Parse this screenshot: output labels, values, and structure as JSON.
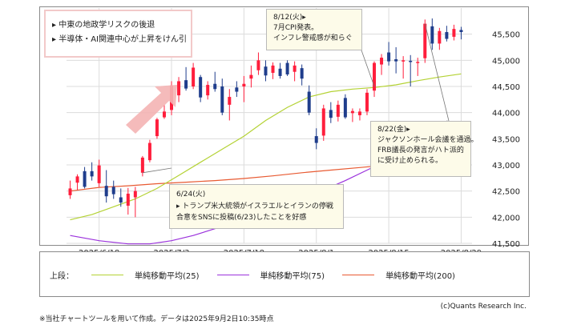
{
  "chart_data": {
    "type": "candlestick",
    "y_ticks": [
      "45,500",
      "45,000",
      "44,500",
      "44,000",
      "43,500",
      "43,000",
      "42,500",
      "42,000",
      "41,500"
    ],
    "y_tick_values": [
      45500,
      45000,
      44500,
      44000,
      43500,
      43000,
      42500,
      42000,
      41500
    ],
    "ylim": [
      41500,
      46000
    ],
    "x_ticks": [
      "2025/6/18",
      "2025/7/3",
      "2025/7/18",
      "2025/8/1",
      "2025/8/15",
      "2025/8/29"
    ],
    "x_tick_index": [
      4,
      14,
      24,
      34,
      44,
      54
    ],
    "n_slots": 56,
    "candles": [
      {
        "i": 0,
        "o": 42420,
        "h": 42700,
        "l": 42350,
        "c": 42550
      },
      {
        "i": 1,
        "o": 42660,
        "h": 42820,
        "l": 42520,
        "c": 42780
      },
      {
        "i": 2,
        "o": 42880,
        "h": 42960,
        "l": 42550,
        "c": 42580
      },
      {
        "i": 3,
        "o": 42880,
        "h": 43050,
        "l": 42700,
        "c": 42780
      },
      {
        "i": 4,
        "o": 42650,
        "h": 43100,
        "l": 42580,
        "c": 42990
      },
      {
        "i": 5,
        "o": 42600,
        "h": 42900,
        "l": 42280,
        "c": 42400
      },
      {
        "i": 6,
        "o": 42580,
        "h": 42700,
        "l": 42350,
        "c": 42440
      },
      {
        "i": 7,
        "o": 42380,
        "h": 42550,
        "l": 42200,
        "c": 42280
      },
      {
        "i": 8,
        "o": 42220,
        "h": 42560,
        "l": 42050,
        "c": 42450
      },
      {
        "i": 9,
        "o": 42380,
        "h": 42580,
        "l": 42000,
        "c": 42500
      },
      {
        "i": 10,
        "o": 42850,
        "h": 43170,
        "l": 42780,
        "c": 43140
      },
      {
        "i": 11,
        "o": 43090,
        "h": 43480,
        "l": 43050,
        "c": 43420
      },
      {
        "i": 12,
        "o": 43550,
        "h": 43900,
        "l": 43500,
        "c": 43870
      },
      {
        "i": 13,
        "o": 43910,
        "h": 44150,
        "l": 43880,
        "c": 44020
      },
      {
        "i": 14,
        "o": 44050,
        "h": 44600,
        "l": 43950,
        "c": 44520
      },
      {
        "i": 15,
        "o": 44330,
        "h": 44680,
        "l": 44200,
        "c": 44600
      },
      {
        "i": 16,
        "o": 44620,
        "h": 44870,
        "l": 44420,
        "c": 44460
      },
      {
        "i": 17,
        "o": 44500,
        "h": 44950,
        "l": 44450,
        "c": 44860
      },
      {
        "i": 18,
        "o": 44680,
        "h": 44720,
        "l": 44200,
        "c": 44290
      },
      {
        "i": 19,
        "o": 44330,
        "h": 44600,
        "l": 44250,
        "c": 44530
      },
      {
        "i": 20,
        "o": 44550,
        "h": 44780,
        "l": 44400,
        "c": 44450
      },
      {
        "i": 21,
        "o": 44500,
        "h": 44650,
        "l": 43950,
        "c": 44000
      },
      {
        "i": 22,
        "o": 44150,
        "h": 44450,
        "l": 43850,
        "c": 44300
      },
      {
        "i": 23,
        "o": 44480,
        "h": 44600,
        "l": 44300,
        "c": 44400
      },
      {
        "i": 24,
        "o": 44500,
        "h": 44700,
        "l": 44200,
        "c": 44550
      },
      {
        "i": 25,
        "o": 44650,
        "h": 44900,
        "l": 44480,
        "c": 44720
      },
      {
        "i": 26,
        "o": 44810,
        "h": 45150,
        "l": 44720,
        "c": 45000
      },
      {
        "i": 27,
        "o": 44880,
        "h": 45000,
        "l": 44600,
        "c": 44710
      },
      {
        "i": 28,
        "o": 44760,
        "h": 44960,
        "l": 44640,
        "c": 44900
      },
      {
        "i": 29,
        "o": 44840,
        "h": 44950,
        "l": 44650,
        "c": 44700
      },
      {
        "i": 30,
        "o": 44950,
        "h": 45000,
        "l": 44700,
        "c": 44730
      },
      {
        "i": 31,
        "o": 44780,
        "h": 44980,
        "l": 44600,
        "c": 44900
      },
      {
        "i": 32,
        "o": 44850,
        "h": 44920,
        "l": 44520,
        "c": 44650
      },
      {
        "i": 33,
        "o": 44400,
        "h": 44520,
        "l": 43950,
        "c": 44000
      },
      {
        "i": 34,
        "o": 43550,
        "h": 43700,
        "l": 43300,
        "c": 43420
      },
      {
        "i": 35,
        "o": 43560,
        "h": 44150,
        "l": 43460,
        "c": 44080
      },
      {
        "i": 36,
        "o": 44050,
        "h": 44200,
        "l": 43800,
        "c": 43900
      },
      {
        "i": 37,
        "o": 43920,
        "h": 44230,
        "l": 43830,
        "c": 44150
      },
      {
        "i": 38,
        "o": 44280,
        "h": 44350,
        "l": 43880,
        "c": 43910
      },
      {
        "i": 39,
        "o": 43990,
        "h": 44080,
        "l": 43820,
        "c": 44030
      },
      {
        "i": 40,
        "o": 43950,
        "h": 44080,
        "l": 43850,
        "c": 44020
      },
      {
        "i": 41,
        "o": 44020,
        "h": 44450,
        "l": 43950,
        "c": 44380
      },
      {
        "i": 42,
        "o": 44420,
        "h": 44980,
        "l": 44300,
        "c": 44950
      },
      {
        "i": 43,
        "o": 44920,
        "h": 45120,
        "l": 44720,
        "c": 45050
      },
      {
        "i": 44,
        "o": 45150,
        "h": 45350,
        "l": 44900,
        "c": 44980
      },
      {
        "i": 45,
        "o": 45020,
        "h": 45250,
        "l": 44750,
        "c": 44980
      },
      {
        "i": 46,
        "o": 44990,
        "h": 45080,
        "l": 44650,
        "c": 45000
      },
      {
        "i": 47,
        "o": 44990,
        "h": 45100,
        "l": 44500,
        "c": 44970
      },
      {
        "i": 48,
        "o": 44950,
        "h": 45050,
        "l": 44700,
        "c": 44970
      },
      {
        "i": 49,
        "o": 45040,
        "h": 45780,
        "l": 44950,
        "c": 45700
      },
      {
        "i": 50,
        "o": 45650,
        "h": 45800,
        "l": 45200,
        "c": 45320
      },
      {
        "i": 51,
        "o": 45320,
        "h": 45620,
        "l": 45200,
        "c": 45560
      },
      {
        "i": 52,
        "o": 45540,
        "h": 45660,
        "l": 45360,
        "c": 45410
      },
      {
        "i": 53,
        "o": 45450,
        "h": 45680,
        "l": 45380,
        "c": 45600
      },
      {
        "i": 54,
        "o": 45580,
        "h": 45640,
        "l": 45400,
        "c": 45540
      }
    ],
    "ma25": [
      [
        0,
        41950
      ],
      [
        3,
        42050
      ],
      [
        6,
        42200
      ],
      [
        9,
        42350
      ],
      [
        12,
        42550
      ],
      [
        15,
        42800
      ],
      [
        18,
        43050
      ],
      [
        21,
        43300
      ],
      [
        24,
        43550
      ],
      [
        27,
        43850
      ],
      [
        30,
        44100
      ],
      [
        33,
        44300
      ],
      [
        36,
        44400
      ],
      [
        39,
        44450
      ],
      [
        42,
        44480
      ],
      [
        45,
        44530
      ],
      [
        48,
        44610
      ],
      [
        51,
        44680
      ],
      [
        54,
        44740
      ]
    ],
    "ma75": [
      [
        0,
        41650
      ],
      [
        4,
        41550
      ],
      [
        8,
        41490
      ],
      [
        11,
        41490
      ],
      [
        14,
        41550
      ],
      [
        17,
        41650
      ],
      [
        20,
        41780
      ],
      [
        23,
        41930
      ],
      [
        26,
        42080
      ],
      [
        29,
        42230
      ],
      [
        32,
        42360
      ],
      [
        35,
        42520
      ],
      [
        38,
        42700
      ],
      [
        41,
        42900
      ],
      [
        44,
        43100
      ],
      [
        48,
        43350
      ],
      [
        52,
        43600
      ],
      [
        54,
        43750
      ]
    ],
    "ma200": [
      [
        0,
        42500
      ],
      [
        4,
        42570
      ],
      [
        8,
        42600
      ],
      [
        12,
        42640
      ],
      [
        16,
        42670
      ],
      [
        20,
        42700
      ],
      [
        24,
        42740
      ],
      [
        28,
        42790
      ],
      [
        32,
        42850
      ],
      [
        36,
        42900
      ],
      [
        40,
        42950
      ],
      [
        44,
        43000
      ],
      [
        48,
        43060
      ],
      [
        52,
        43110
      ],
      [
        54,
        43140
      ]
    ],
    "colors": {
      "up": "#ff1e3c",
      "down": "#1f3d8c",
      "ma25": "#b4d234",
      "ma75": "#9b32dc",
      "ma200": "#e85a32",
      "arrow": "#f4b4b4"
    },
    "legend": {
      "prefix": "上段：",
      "series": [
        {
          "name": "単純移動平均(25)",
          "color": "#b4d234"
        },
        {
          "name": "単純移動平均(75)",
          "color": "#9b32dc"
        },
        {
          "name": "単純移動平均(200)",
          "color": "#e85a32"
        }
      ]
    }
  },
  "notes": {
    "top_left": [
      "▸ 中東の地政学リスクの後退",
      "▸ 半導体・AI関連中心が上昇をけん引"
    ],
    "aug12": [
      "8/12(火)▸",
      "7月CPI発表。",
      "インフレ警戒感が和らぐ"
    ],
    "aug22": [
      "8/22(金)▸",
      "ジャクソンホール会議を通過。",
      "FRB議長の発言がハト派的",
      "に受け止められる。"
    ],
    "jun24": [
      "6/24(火)",
      "▸ トランプ米大統領がイスラエルとイランの停戦",
      "合意をSNSに投稿(6/23)したことを好感"
    ]
  },
  "footer": {
    "source": "※当社チャートツールを用いて作成。データは2025年9月2日10:35時点",
    "copyright": "(c)Quants Research Inc."
  }
}
